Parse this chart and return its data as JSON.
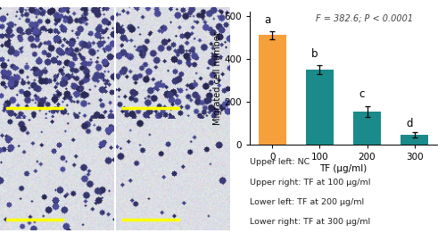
{
  "categories": [
    "0",
    "100",
    "200",
    "300"
  ],
  "values": [
    510,
    350,
    155,
    45
  ],
  "errors": [
    18,
    22,
    25,
    12
  ],
  "bar_colors": [
    "#F5A03A",
    "#1A8A8A",
    "#1A8A8A",
    "#1A8A8A"
  ],
  "ylabel": "Migrated cell number",
  "xlabel": "TF (μg/ml)",
  "ylim": [
    0,
    620
  ],
  "yticks": [
    0,
    200,
    400,
    600
  ],
  "stat_label": "F = 382.6; P < 0.0001",
  "sig_letters": [
    "a",
    "b",
    "c",
    "d"
  ],
  "caption_lines": [
    "Upper left: NC",
    "Upper right: TF at 100 μg/ml",
    "Lower left: TF at 200 μg/ml",
    "Lower right: TF at 300 μg/ml"
  ],
  "bg_color": "#FFFFFF",
  "cell_densities": [
    0.55,
    0.35,
    0.12,
    0.04
  ],
  "img_bg_color": [
    220,
    222,
    228
  ],
  "cell_color": [
    80,
    80,
    160
  ],
  "scale_bar_color": "#FFFF00",
  "panel_edge_color": "#FFFFFF"
}
